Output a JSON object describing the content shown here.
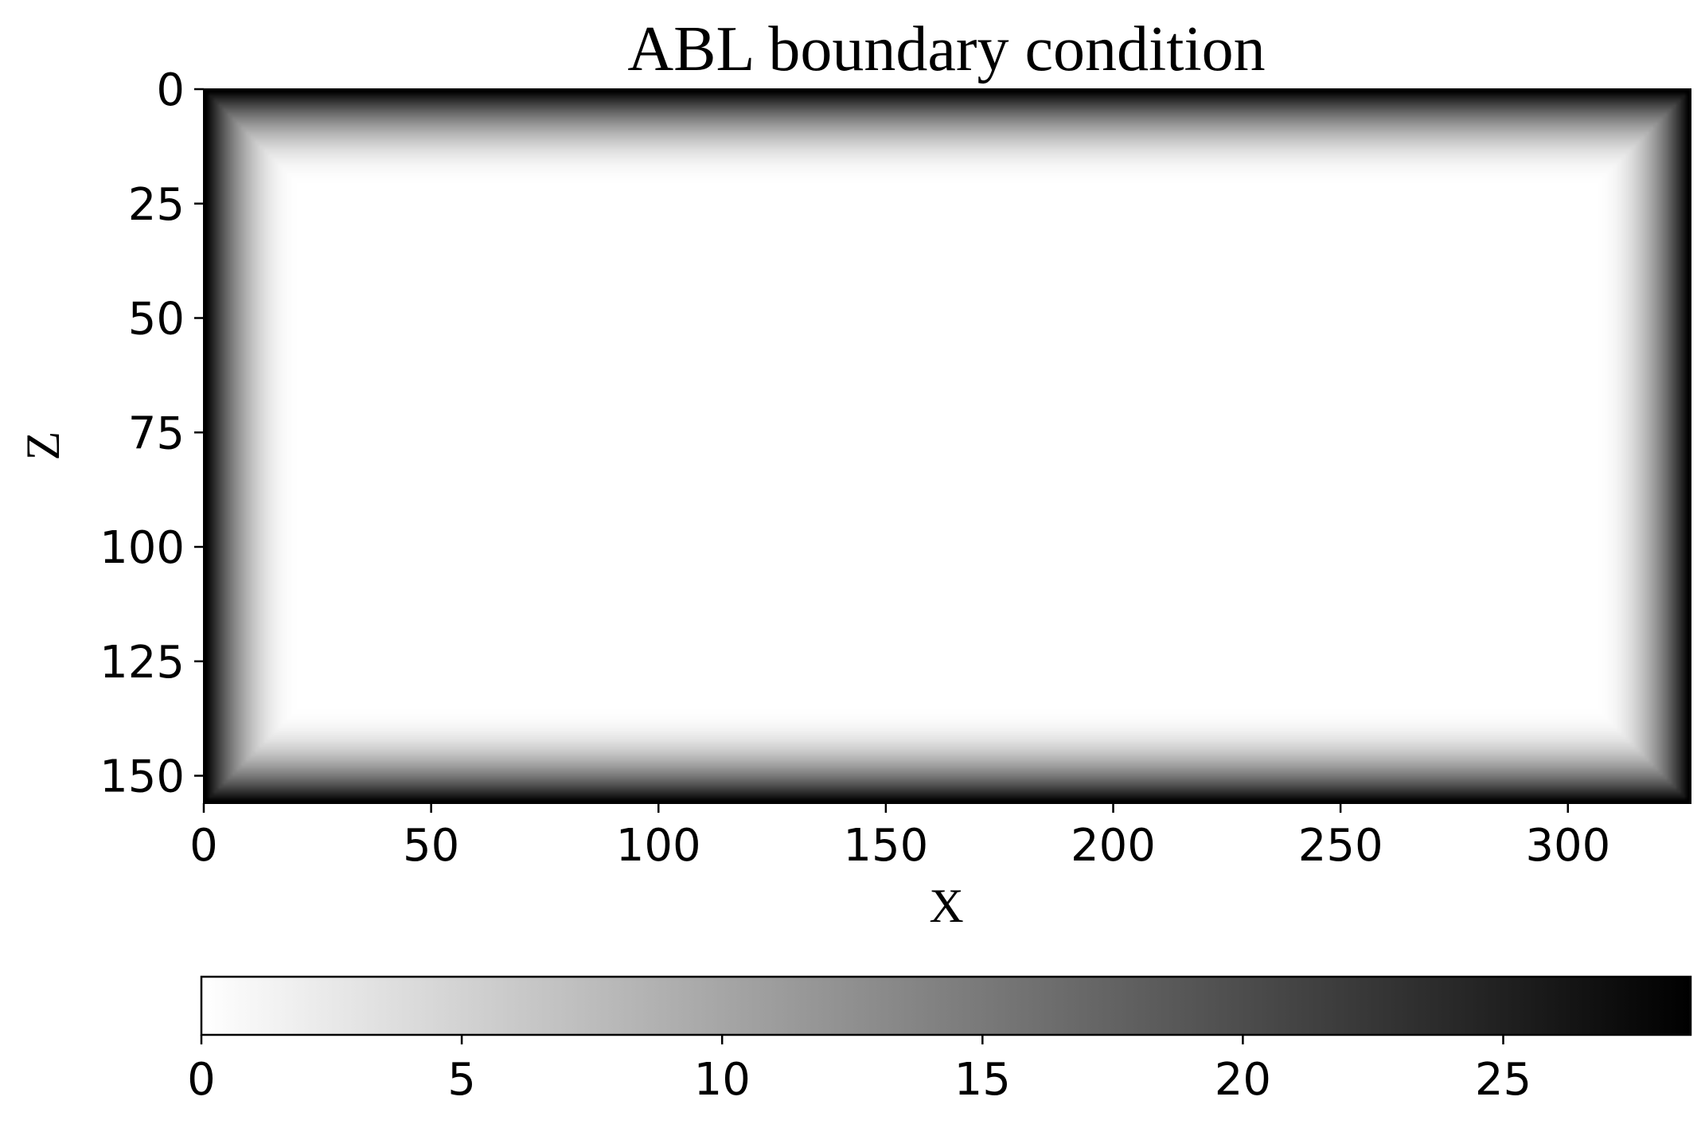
{
  "chart_data": {
    "type": "heatmap",
    "title": "ABL boundary condition",
    "xlabel": "X",
    "ylabel": "Z",
    "grid": false,
    "legend": "none",
    "xlim": [
      0,
      327
    ],
    "ylim": [
      156,
      0
    ],
    "x_ticks": [
      0,
      50,
      100,
      150,
      200,
      250,
      300
    ],
    "y_ticks": [
      0,
      25,
      50,
      75,
      100,
      125,
      150
    ],
    "field": {
      "nx": 327,
      "nz": 156,
      "absorbing_layer_width": 20,
      "max_value": 28.6,
      "description_profile": "value increases quadratically toward every boundary within the absorbing layer; interior is 0"
    },
    "colorbar": {
      "orientation": "horizontal",
      "position": "bottom",
      "colormap": "gray_r",
      "min": 0,
      "max": 28.6,
      "ticks": [
        0,
        5,
        10,
        15,
        20,
        25
      ],
      "color_low": "#ffffff",
      "color_high": "#000000"
    }
  }
}
